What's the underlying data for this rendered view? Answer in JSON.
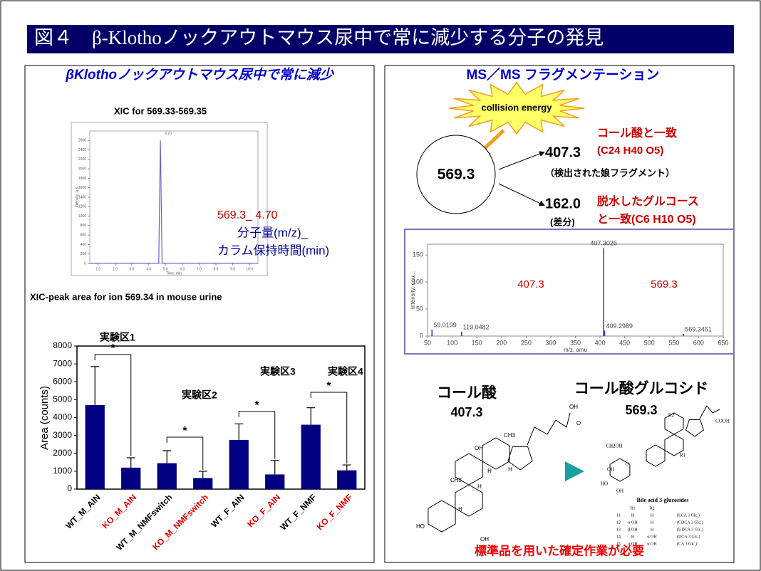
{
  "title": "図４　β-Klothoノックアウトマウス尿中で常に減少する分子の発見",
  "left": {
    "heading": "βKlothoノックアウトマウス尿中で常に減少",
    "xic": {
      "type": "line",
      "title": "XIC for 569.33-569.35",
      "x_label": "Time, min",
      "y_label": "Intensity, cps",
      "x": [
        0.5,
        4.6,
        4.7,
        4.8,
        10.5
      ],
      "values": [
        5,
        5,
        2600,
        5,
        5
      ],
      "color": "#6666cc",
      "peak_label": "4.70",
      "xlim": [
        0.5,
        10.5
      ],
      "xticks": [
        {
          "value": 1,
          "label": "1.0"
        },
        {
          "value": 2,
          "label": "2.0"
        },
        {
          "value": 3,
          "label": "3.0"
        },
        {
          "value": 4,
          "label": "4.0"
        },
        {
          "value": 5,
          "label": "5.0"
        },
        {
          "value": 6,
          "label": "6.0"
        },
        {
          "value": 7,
          "label": "7.0"
        },
        {
          "value": 8,
          "label": "8.0"
        },
        {
          "value": 9,
          "label": "9.0"
        },
        {
          "value": 10,
          "label": "10.0"
        }
      ],
      "ylim": [
        0,
        2800
      ],
      "yticks": [
        0,
        200,
        400,
        600,
        800,
        1000,
        1200,
        1400,
        1600,
        1800,
        2000,
        2200,
        2400,
        2600
      ]
    },
    "xic_annotation": {
      "peak": "569.3_ 4.70",
      "line1": "分子量(m/z)_",
      "line2": "カラム保持時間(min)"
    },
    "bar_chart_heading": "XIC-peak area for ion 569.34 in mouse urine",
    "bar_chart": {
      "type": "bar",
      "y_label": "Area (counts)",
      "color": "#000080",
      "categories": [
        "WT_M_AIN",
        "KO_M_AIN",
        "WT_M_NMFswitch",
        "KO_M_NMFswitch",
        "WT_F_AIN",
        "KO_F_AIN",
        "WT_F_NMF",
        "KO_F_NMF"
      ],
      "label_colors": [
        "#000000",
        "#e00000",
        "#000000",
        "#e00000",
        "#000000",
        "#e00000",
        "#000000",
        "#e00000"
      ],
      "values": [
        4700,
        1200,
        1450,
        620,
        2750,
        820,
        3600,
        1050
      ],
      "errors": [
        2150,
        550,
        700,
        380,
        900,
        780,
        950,
        300
      ],
      "ylim": [
        0,
        8000
      ],
      "yticks": [
        0,
        1000,
        2000,
        3000,
        4000,
        5000,
        6000,
        7000,
        8000
      ],
      "groups": [
        "実験区1",
        "実験区2",
        "実験区3",
        "実験区4"
      ],
      "significance": [
        "*",
        "*",
        "*",
        "*"
      ]
    }
  },
  "right": {
    "heading": "MS／MS フラグメンテーション",
    "burst": "collision energy",
    "precursor": "569.3",
    "fragment1": {
      "mz": "407.3",
      "match": "コール酸と一致",
      "formula": "(C24 H40 O5)",
      "note": "（検出された娘フラグメント）"
    },
    "fragment2": {
      "mz": "162.0",
      "note": "(差分)",
      "match": "脱水したグルコース",
      "formula": "と一致(C6 H10 O5)"
    },
    "spectrum": {
      "type": "bar",
      "x_label": "m/z, amu",
      "y_label": "Intensity, cou...",
      "color": "#3333cc",
      "x": [
        59.0199,
        119.0482,
        407.3026,
        409.2989,
        569.3451
      ],
      "values": [
        12,
        8,
        163,
        10,
        4
      ],
      "xlim": [
        50,
        650
      ],
      "xticks": [
        50,
        100,
        150,
        200,
        250,
        300,
        350,
        400,
        450,
        500,
        550,
        600,
        650
      ],
      "ylim": [
        0,
        170
      ],
      "yticks": [
        0,
        50,
        100,
        150
      ],
      "annotations": [
        "407.3",
        "569.3"
      ]
    },
    "compound1": {
      "name": "コール酸",
      "mz": "407.3",
      "labels": [
        "HO",
        "OH",
        "OH",
        "OH",
        "O",
        "H",
        "H",
        "H",
        "H",
        "CH3",
        "CH3"
      ]
    },
    "compound2": {
      "name": "コール酸グルコシド",
      "mz": "569.3",
      "labels": [
        "CH2OH",
        "O",
        "HO",
        "OH",
        "OH",
        "R2",
        "R1",
        "COOH"
      ],
      "table_title": "Bile acid 3-glucosides",
      "table_header": [
        "R1",
        "R2"
      ],
      "table_rows": [
        [
          "11",
          "H",
          "H",
          "(LCA 3 Glc.)"
        ],
        [
          "12",
          "α OH",
          "H",
          "(CDCA 3 Glc.)"
        ],
        [
          "13",
          "β OH",
          "H",
          "(UDCA 3 Glc.)"
        ],
        [
          "14",
          "H",
          "α OH",
          "(DCA 3 Glc.)"
        ],
        [
          "15",
          "α OH",
          "α OH",
          "(CA 3 Glc.)"
        ]
      ]
    },
    "footer": "標準品を用いた確定作業が必要"
  }
}
